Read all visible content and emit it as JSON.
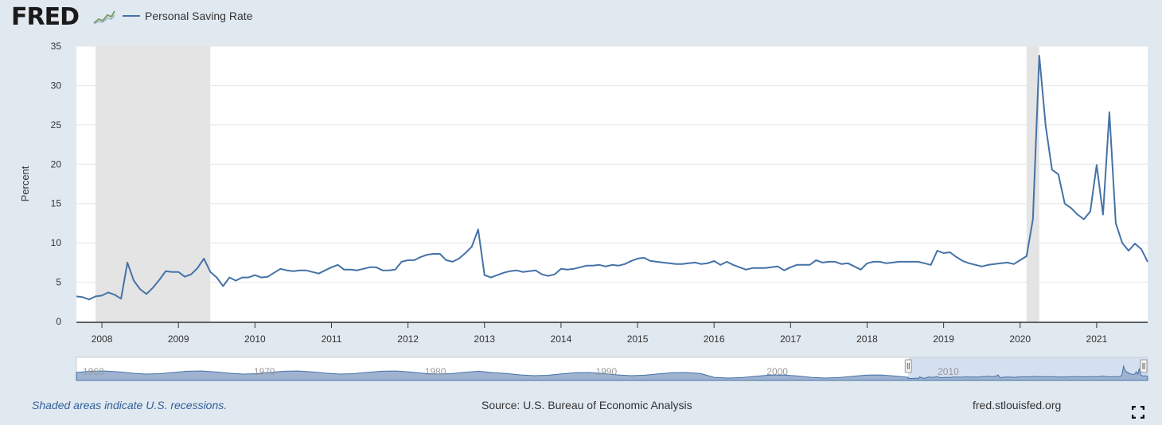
{
  "header": {
    "logo": "FRED",
    "legend_label": "Personal Saving Rate"
  },
  "footer": {
    "recession_note": "Shaded areas indicate U.S. recessions.",
    "source": "Source: U.S. Bureau of Economic Analysis",
    "site": "fred.stlouisfed.org"
  },
  "icons": {
    "logo_graph": "fred-logo-graph-icon",
    "fullscreen": "fullscreen-icon"
  },
  "colors": {
    "line": "#4572a7",
    "recession": "#e4e4e4",
    "background": "#e1e9f0",
    "navigator_fill": "#9fb3d1"
  },
  "chart_data": {
    "type": "line",
    "title": "",
    "xlabel": "",
    "ylabel": "Percent",
    "ylim": [
      0,
      35
    ],
    "yticks": [
      0,
      5,
      10,
      15,
      20,
      25,
      30,
      35
    ],
    "xlim": [
      "2007-09",
      "2021-09"
    ],
    "xticks": [
      "2008",
      "2009",
      "2010",
      "2011",
      "2012",
      "2013",
      "2014",
      "2015",
      "2016",
      "2017",
      "2018",
      "2019",
      "2020",
      "2021"
    ],
    "grid": "horizontal",
    "recessions": [
      [
        "2007-12",
        "2009-06"
      ],
      [
        "2020-02",
        "2020-04"
      ]
    ],
    "navigator_labels": [
      "1960",
      "1970",
      "1980",
      "1990",
      "2000",
      "2010"
    ],
    "series": [
      {
        "name": "Personal Saving Rate",
        "values": [
          [
            "2007-09",
            3.2
          ],
          [
            "2007-10",
            3.1
          ],
          [
            "2007-11",
            2.8
          ],
          [
            "2007-12",
            3.2
          ],
          [
            "2008-01",
            3.3
          ],
          [
            "2008-02",
            3.7
          ],
          [
            "2008-03",
            3.4
          ],
          [
            "2008-04",
            2.9
          ],
          [
            "2008-05",
            7.5
          ],
          [
            "2008-06",
            5.2
          ],
          [
            "2008-07",
            4.1
          ],
          [
            "2008-08",
            3.5
          ],
          [
            "2008-09",
            4.3
          ],
          [
            "2008-10",
            5.3
          ],
          [
            "2008-11",
            6.4
          ],
          [
            "2008-12",
            6.3
          ],
          [
            "2009-01",
            6.3
          ],
          [
            "2009-02",
            5.7
          ],
          [
            "2009-03",
            6.0
          ],
          [
            "2009-04",
            6.8
          ],
          [
            "2009-05",
            8.0
          ],
          [
            "2009-06",
            6.3
          ],
          [
            "2009-07",
            5.6
          ],
          [
            "2009-08",
            4.5
          ],
          [
            "2009-09",
            5.6
          ],
          [
            "2009-10",
            5.2
          ],
          [
            "2009-11",
            5.6
          ],
          [
            "2009-12",
            5.6
          ],
          [
            "2010-01",
            5.9
          ],
          [
            "2010-02",
            5.6
          ],
          [
            "2010-03",
            5.7
          ],
          [
            "2010-04",
            6.2
          ],
          [
            "2010-05",
            6.7
          ],
          [
            "2010-06",
            6.5
          ],
          [
            "2010-07",
            6.4
          ],
          [
            "2010-08",
            6.5
          ],
          [
            "2010-09",
            6.5
          ],
          [
            "2010-10",
            6.3
          ],
          [
            "2010-11",
            6.1
          ],
          [
            "2010-12",
            6.5
          ],
          [
            "2011-01",
            6.9
          ],
          [
            "2011-02",
            7.2
          ],
          [
            "2011-03",
            6.6
          ],
          [
            "2011-04",
            6.6
          ],
          [
            "2011-05",
            6.5
          ],
          [
            "2011-06",
            6.7
          ],
          [
            "2011-07",
            6.9
          ],
          [
            "2011-08",
            6.9
          ],
          [
            "2011-09",
            6.5
          ],
          [
            "2011-10",
            6.5
          ],
          [
            "2011-11",
            6.6
          ],
          [
            "2011-12",
            7.6
          ],
          [
            "2012-01",
            7.8
          ],
          [
            "2012-02",
            7.8
          ],
          [
            "2012-03",
            8.2
          ],
          [
            "2012-04",
            8.5
          ],
          [
            "2012-05",
            8.6
          ],
          [
            "2012-06",
            8.6
          ],
          [
            "2012-07",
            7.8
          ],
          [
            "2012-08",
            7.6
          ],
          [
            "2012-09",
            8.0
          ],
          [
            "2012-10",
            8.7
          ],
          [
            "2012-11",
            9.5
          ],
          [
            "2012-12",
            11.7
          ],
          [
            "2013-01",
            5.9
          ],
          [
            "2013-02",
            5.6
          ],
          [
            "2013-03",
            5.9
          ],
          [
            "2013-04",
            6.2
          ],
          [
            "2013-05",
            6.4
          ],
          [
            "2013-06",
            6.5
          ],
          [
            "2013-07",
            6.3
          ],
          [
            "2013-08",
            6.4
          ],
          [
            "2013-09",
            6.5
          ],
          [
            "2013-10",
            6.0
          ],
          [
            "2013-11",
            5.8
          ],
          [
            "2013-12",
            6.0
          ],
          [
            "2014-01",
            6.7
          ],
          [
            "2014-02",
            6.6
          ],
          [
            "2014-03",
            6.7
          ],
          [
            "2014-04",
            6.9
          ],
          [
            "2014-05",
            7.1
          ],
          [
            "2014-06",
            7.1
          ],
          [
            "2014-07",
            7.2
          ],
          [
            "2014-08",
            7.0
          ],
          [
            "2014-09",
            7.2
          ],
          [
            "2014-10",
            7.1
          ],
          [
            "2014-11",
            7.3
          ],
          [
            "2014-12",
            7.7
          ],
          [
            "2015-01",
            8.0
          ],
          [
            "2015-02",
            8.1
          ],
          [
            "2015-03",
            7.7
          ],
          [
            "2015-04",
            7.6
          ],
          [
            "2015-05",
            7.5
          ],
          [
            "2015-06",
            7.4
          ],
          [
            "2015-07",
            7.3
          ],
          [
            "2015-08",
            7.3
          ],
          [
            "2015-09",
            7.4
          ],
          [
            "2015-10",
            7.5
          ],
          [
            "2015-11",
            7.3
          ],
          [
            "2015-12",
            7.4
          ],
          [
            "2016-01",
            7.7
          ],
          [
            "2016-02",
            7.2
          ],
          [
            "2016-03",
            7.6
          ],
          [
            "2016-04",
            7.2
          ],
          [
            "2016-05",
            6.9
          ],
          [
            "2016-06",
            6.6
          ],
          [
            "2016-07",
            6.8
          ],
          [
            "2016-08",
            6.8
          ],
          [
            "2016-09",
            6.8
          ],
          [
            "2016-10",
            6.9
          ],
          [
            "2016-11",
            7.0
          ],
          [
            "2016-12",
            6.5
          ],
          [
            "2017-01",
            6.9
          ],
          [
            "2017-02",
            7.2
          ],
          [
            "2017-03",
            7.2
          ],
          [
            "2017-04",
            7.2
          ],
          [
            "2017-05",
            7.8
          ],
          [
            "2017-06",
            7.5
          ],
          [
            "2017-07",
            7.6
          ],
          [
            "2017-08",
            7.6
          ],
          [
            "2017-09",
            7.3
          ],
          [
            "2017-10",
            7.4
          ],
          [
            "2017-11",
            7.0
          ],
          [
            "2017-12",
            6.6
          ],
          [
            "2018-01",
            7.4
          ],
          [
            "2018-02",
            7.6
          ],
          [
            "2018-03",
            7.6
          ],
          [
            "2018-04",
            7.4
          ],
          [
            "2018-05",
            7.5
          ],
          [
            "2018-06",
            7.6
          ],
          [
            "2018-07",
            7.6
          ],
          [
            "2018-08",
            7.6
          ],
          [
            "2018-09",
            7.6
          ],
          [
            "2018-10",
            7.4
          ],
          [
            "2018-11",
            7.2
          ],
          [
            "2018-12",
            9.0
          ],
          [
            "2019-01",
            8.7
          ],
          [
            "2019-02",
            8.8
          ],
          [
            "2019-03",
            8.2
          ],
          [
            "2019-04",
            7.7
          ],
          [
            "2019-05",
            7.4
          ],
          [
            "2019-06",
            7.2
          ],
          [
            "2019-07",
            7.0
          ],
          [
            "2019-08",
            7.2
          ],
          [
            "2019-09",
            7.3
          ],
          [
            "2019-10",
            7.4
          ],
          [
            "2019-11",
            7.5
          ],
          [
            "2019-12",
            7.3
          ],
          [
            "2020-01",
            7.8
          ],
          [
            "2020-02",
            8.3
          ],
          [
            "2020-03",
            13.0
          ],
          [
            "2020-04",
            33.8
          ],
          [
            "2020-05",
            24.9
          ],
          [
            "2020-06",
            19.3
          ],
          [
            "2020-07",
            18.7
          ],
          [
            "2020-08",
            15.0
          ],
          [
            "2020-09",
            14.4
          ],
          [
            "2020-10",
            13.6
          ],
          [
            "2020-11",
            13.0
          ],
          [
            "2020-12",
            14.0
          ],
          [
            "2021-01",
            19.9
          ],
          [
            "2021-02",
            13.6
          ],
          [
            "2021-03",
            26.6
          ],
          [
            "2021-04",
            12.5
          ],
          [
            "2021-05",
            10.0
          ],
          [
            "2021-06",
            9.0
          ],
          [
            "2021-07",
            9.9
          ],
          [
            "2021-08",
            9.2
          ],
          [
            "2021-09",
            7.6
          ]
        ]
      }
    ]
  }
}
